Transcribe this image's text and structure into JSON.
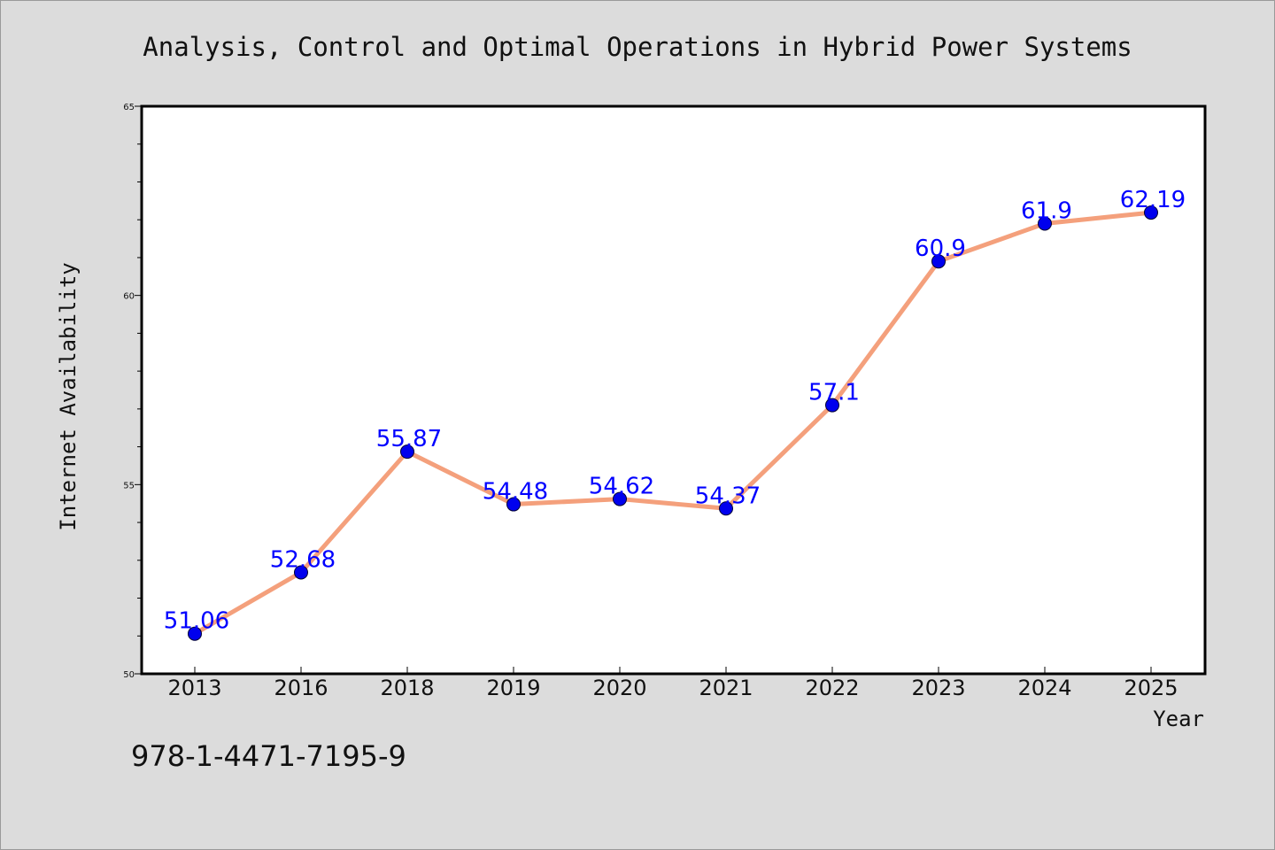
{
  "isbn": "978-1-4471-7195-9",
  "colors": {
    "line": "#f4a07c",
    "marker": "#0000ee",
    "label": "#0000ff",
    "plot_bg": "#ffffff",
    "page_bg": "#dcdcdc"
  },
  "chart_data": {
    "type": "line",
    "title": "Analysis, Control and Optimal Operations in Hybrid Power Systems",
    "xlabel": "Year",
    "ylabel": "Internet Availability",
    "categories": [
      "2013",
      "2016",
      "2018",
      "2019",
      "2020",
      "2021",
      "2022",
      "2023",
      "2024",
      "2025"
    ],
    "series": [
      {
        "values": [
          51.06,
          52.68,
          55.87,
          54.48,
          54.62,
          54.37,
          57.1,
          60.9,
          61.9,
          62.19
        ]
      }
    ],
    "data_labels": [
      "51.06",
      "52.68",
      "55.87",
      "54.48",
      "54.62",
      "54.37",
      "57.1",
      "60.9",
      "61.9",
      "62.19"
    ],
    "ylim": [
      50,
      65
    ],
    "yticks": [
      50,
      55,
      60,
      65
    ],
    "grid": false,
    "legend": "none"
  }
}
